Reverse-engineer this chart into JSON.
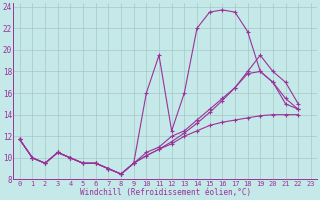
{
  "xlabel": "Windchill (Refroidissement éolien,°C)",
  "bg_color": "#c5e8e8",
  "line_color": "#993399",
  "grid_color": "#a8c8c8",
  "xlim": [
    -0.5,
    23.5
  ],
  "ylim": [
    8,
    24.3
  ],
  "xticks": [
    0,
    1,
    2,
    3,
    4,
    5,
    6,
    7,
    8,
    9,
    10,
    11,
    12,
    13,
    14,
    15,
    16,
    17,
    18,
    19,
    20,
    21,
    22,
    23
  ],
  "yticks": [
    8,
    10,
    12,
    14,
    16,
    18,
    20,
    22,
    24
  ],
  "lines": [
    [
      11.7,
      10.0,
      9.5,
      10.5,
      10.0,
      9.5,
      9.5,
      9.0,
      8.5,
      9.5,
      16.0,
      19.5,
      12.5,
      16.0,
      22.0,
      23.5,
      23.7,
      23.5,
      21.7,
      18.0,
      17.0,
      15.0,
      14.5,
      null
    ],
    [
      11.7,
      10.0,
      9.5,
      10.5,
      10.0,
      9.5,
      9.5,
      9.0,
      8.5,
      9.5,
      10.2,
      10.8,
      11.3,
      12.0,
      12.5,
      13.0,
      13.3,
      13.5,
      13.7,
      13.9,
      14.0,
      14.0,
      14.0,
      null
    ],
    [
      11.7,
      10.0,
      9.5,
      10.5,
      10.0,
      9.5,
      9.5,
      9.0,
      8.5,
      9.5,
      10.5,
      11.0,
      12.0,
      12.5,
      13.5,
      14.5,
      15.5,
      16.5,
      17.8,
      18.0,
      17.0,
      15.5,
      14.5,
      null
    ],
    [
      11.7,
      10.0,
      9.5,
      10.5,
      10.0,
      9.5,
      9.5,
      9.0,
      8.5,
      9.5,
      10.2,
      10.8,
      11.5,
      12.3,
      13.2,
      14.2,
      15.3,
      16.5,
      18.0,
      19.5,
      18.0,
      17.0,
      15.0,
      null
    ]
  ]
}
